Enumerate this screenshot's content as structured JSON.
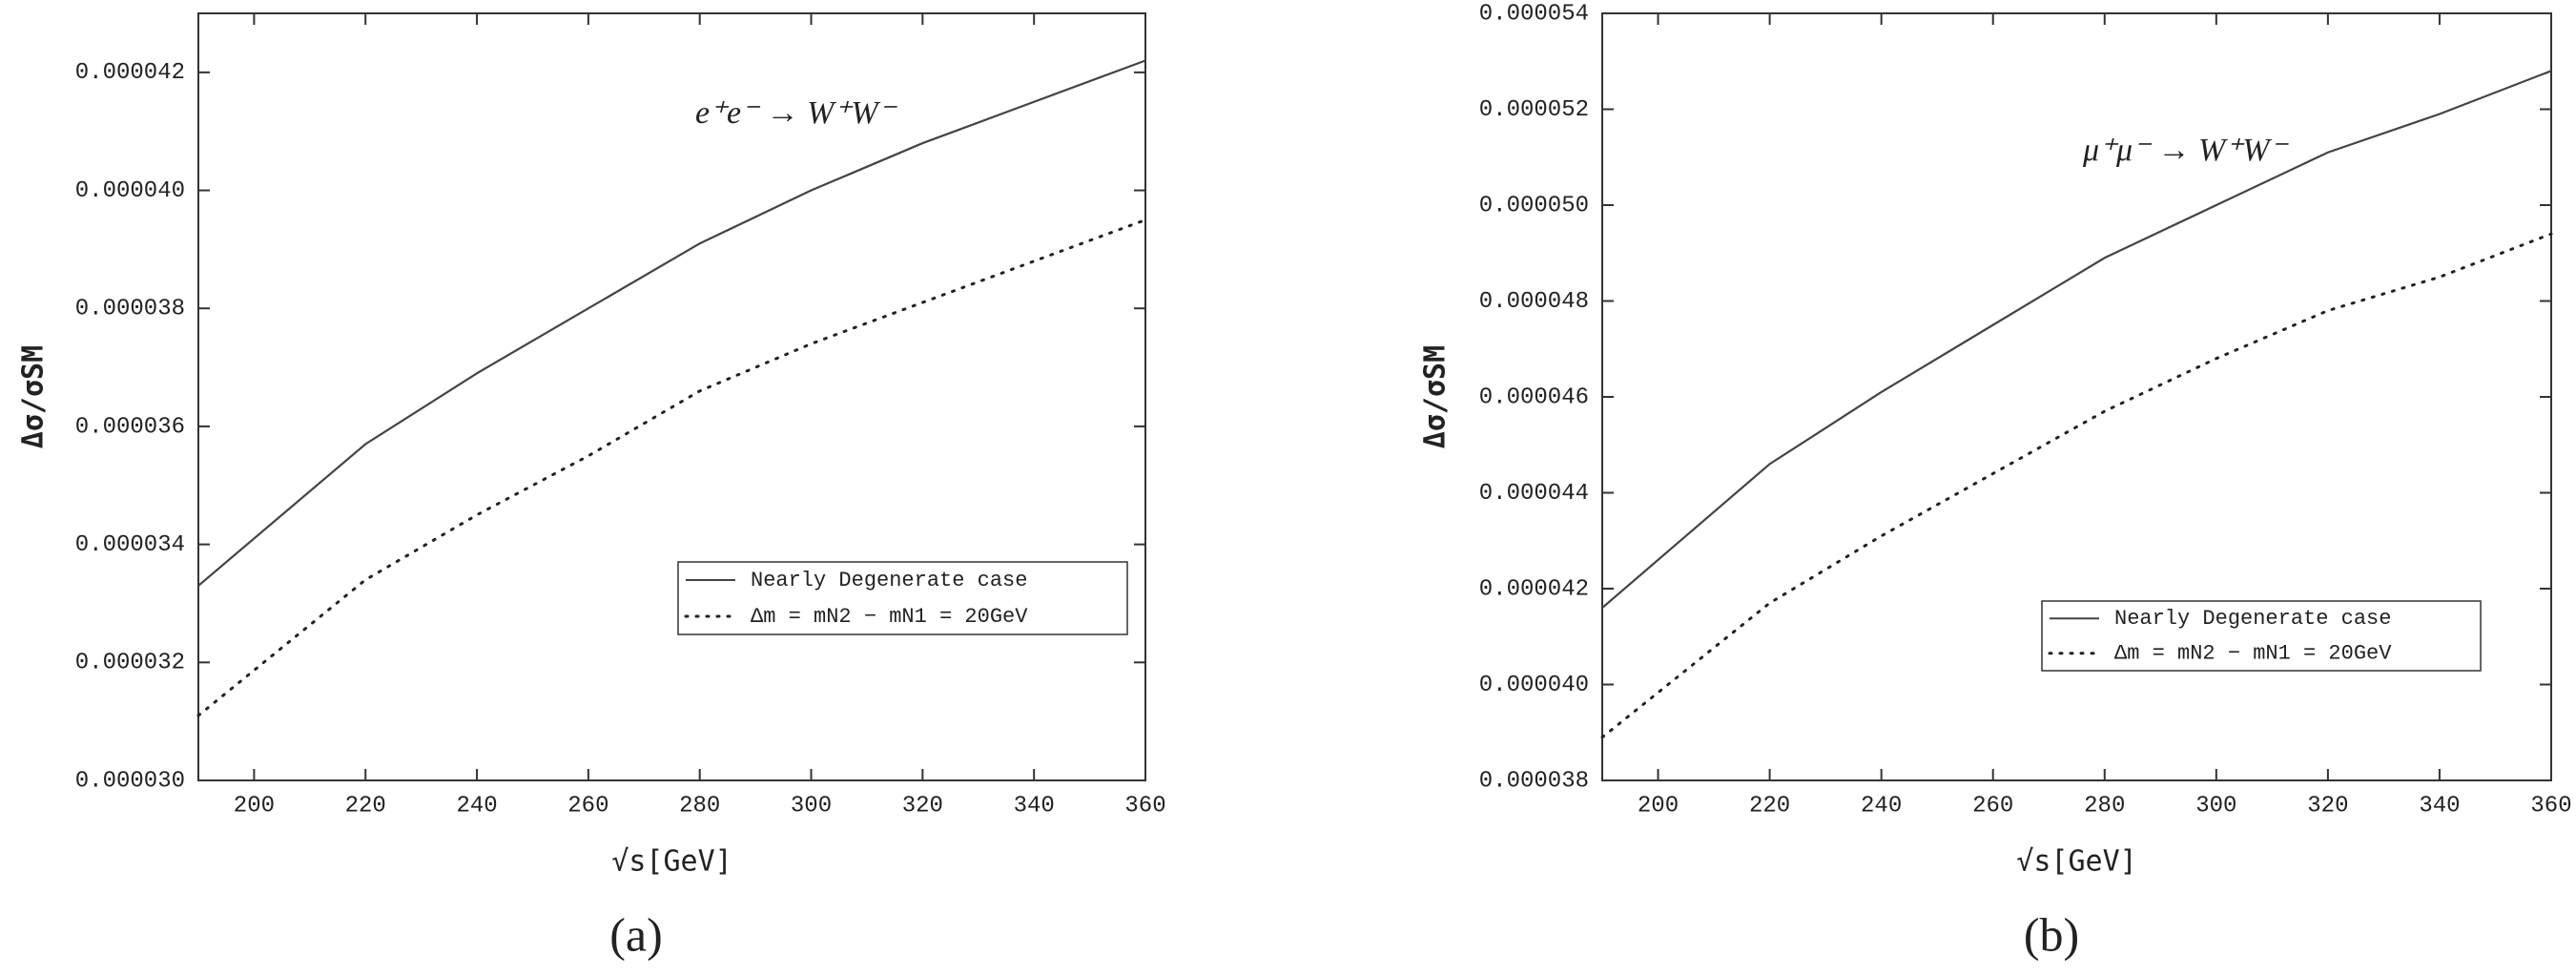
{
  "chart_data": [
    {
      "type": "line",
      "caption": "(a)",
      "annotation": "e⁺e⁻ → W⁺W⁻",
      "x_label": "√s[GeV]",
      "y_label": "Δσ/σSM",
      "x": [
        190,
        220,
        240,
        260,
        280,
        300,
        320,
        340,
        360
      ],
      "series": [
        {
          "name": "Nearly Degenerate case",
          "color": "#444444",
          "style": "solid",
          "values": [
            3.33e-05,
            3.57e-05,
            3.69e-05,
            3.8e-05,
            3.91e-05,
            4e-05,
            4.08e-05,
            4.15e-05,
            4.22e-05
          ]
        },
        {
          "name": "Δm = mN2 − mN1 = 20GeV",
          "color": "#222222",
          "style": "dotted",
          "values": [
            3.11e-05,
            3.34e-05,
            3.45e-05,
            3.55e-05,
            3.66e-05,
            3.74e-05,
            3.81e-05,
            3.88e-05,
            3.95e-05
          ]
        }
      ],
      "xlim": [
        190,
        360
      ],
      "xticks": [
        200,
        220,
        240,
        260,
        280,
        300,
        320,
        340,
        360
      ],
      "ylim": [
        3e-05,
        4.3e-05
      ],
      "yticks": [
        {
          "value": 3e-05,
          "label": "0.000030"
        },
        {
          "value": 3.2e-05,
          "label": "0.000032"
        },
        {
          "value": 3.4e-05,
          "label": "0.000034"
        },
        {
          "value": 3.6e-05,
          "label": "0.000036"
        },
        {
          "value": 3.8e-05,
          "label": "0.000038"
        },
        {
          "value": 4e-05,
          "label": "0.000040"
        },
        {
          "value": 4.2e-05,
          "label": "0.000042"
        }
      ],
      "legend": "lower right"
    },
    {
      "type": "line",
      "caption": "(b)",
      "annotation": "μ⁺μ⁻ → W⁺W⁻",
      "x_label": "√s[GeV]",
      "y_label": "Δσ/σSM",
      "x": [
        190,
        220,
        240,
        260,
        280,
        300,
        320,
        340,
        360
      ],
      "series": [
        {
          "name": "Nearly Degenerate case",
          "color": "#444444",
          "style": "solid",
          "values": [
            4.16e-05,
            4.46e-05,
            4.61e-05,
            4.75e-05,
            4.89e-05,
            5e-05,
            5.11e-05,
            5.19e-05,
            5.28e-05
          ]
        },
        {
          "name": "Δm = mN2 − mN1 = 20GeV",
          "color": "#222222",
          "style": "dotted",
          "values": [
            3.89e-05,
            4.17e-05,
            4.31e-05,
            4.44e-05,
            4.57e-05,
            4.68e-05,
            4.78e-05,
            4.85e-05,
            4.94e-05
          ]
        }
      ],
      "xlim": [
        190,
        360
      ],
      "xticks": [
        200,
        220,
        240,
        260,
        280,
        300,
        320,
        340,
        360
      ],
      "ylim": [
        3.8e-05,
        5.4e-05
      ],
      "yticks": [
        {
          "value": 3.8e-05,
          "label": "0.000038"
        },
        {
          "value": 4e-05,
          "label": "0.000040"
        },
        {
          "value": 4.2e-05,
          "label": "0.000042"
        },
        {
          "value": 4.4e-05,
          "label": "0.000044"
        },
        {
          "value": 4.6e-05,
          "label": "0.000046"
        },
        {
          "value": 4.8e-05,
          "label": "0.000048"
        },
        {
          "value": 5e-05,
          "label": "0.000050"
        },
        {
          "value": 5.2e-05,
          "label": "0.000052"
        },
        {
          "value": 5.4e-05,
          "label": "0.000054"
        }
      ],
      "legend": "lower right"
    }
  ]
}
